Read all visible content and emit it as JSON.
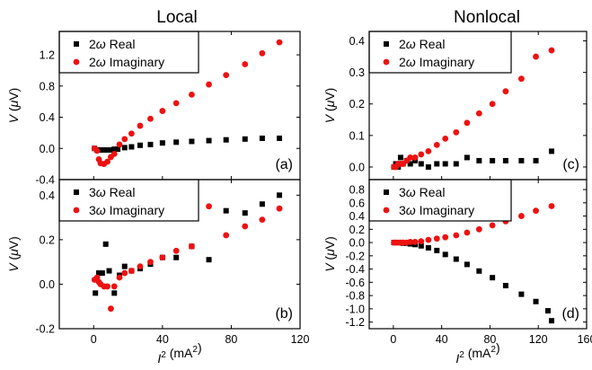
{
  "figure": {
    "columns": [
      {
        "title": "Local"
      },
      {
        "title": "Nonlocal"
      }
    ]
  },
  "chart_data": [
    {
      "id": "a",
      "type": "scatter",
      "panel_label": "(a)",
      "column": 0,
      "row": 0,
      "ylabel": "V (μV)",
      "xlabel": "",
      "xlim": [
        -20,
        120
      ],
      "ylim": [
        -0.4,
        1.5
      ],
      "yticks": [
        -0.4,
        0.0,
        0.4,
        0.8,
        1.2
      ],
      "ytick_labels": [
        "-0.4",
        "0.0",
        "0.4",
        "0.8",
        "1.2"
      ],
      "xticks": [
        0,
        40,
        80,
        120
      ],
      "xtick_labels": [],
      "legend_position": "top-left",
      "series": [
        {
          "name": "2ω Real",
          "marker": "square",
          "color": "#000000",
          "points": [
            [
              0.5,
              0
            ],
            [
              2,
              -0.02
            ],
            [
              4,
              -0.02
            ],
            [
              6,
              -0.02
            ],
            [
              8,
              -0.02
            ],
            [
              10,
              -0.02
            ],
            [
              12,
              -0.01
            ],
            [
              14,
              -0.01
            ],
            [
              18,
              0.01
            ],
            [
              22,
              0.02
            ],
            [
              27,
              0.04
            ],
            [
              33,
              0.05
            ],
            [
              40,
              0.07
            ],
            [
              48,
              0.08
            ],
            [
              57,
              0.09
            ],
            [
              67,
              0.1
            ],
            [
              77,
              0.11
            ],
            [
              88,
              0.12
            ],
            [
              98,
              0.13
            ],
            [
              108,
              0.13
            ]
          ]
        },
        {
          "name": "2ω Imaginary",
          "marker": "circle",
          "color": "#ee1111",
          "points": [
            [
              0.5,
              0
            ],
            [
              2,
              -0.03
            ],
            [
              3,
              -0.14
            ],
            [
              4,
              -0.19
            ],
            [
              6,
              -0.2
            ],
            [
              8,
              -0.17
            ],
            [
              10,
              -0.11
            ],
            [
              12,
              -0.07
            ],
            [
              15,
              0.05
            ],
            [
              18,
              0.12
            ],
            [
              22,
              0.19
            ],
            [
              27,
              0.29
            ],
            [
              33,
              0.38
            ],
            [
              40,
              0.48
            ],
            [
              48,
              0.58
            ],
            [
              57,
              0.69
            ],
            [
              67,
              0.82
            ],
            [
              77,
              0.94
            ],
            [
              88,
              1.08
            ],
            [
              98,
              1.22
            ],
            [
              108,
              1.36
            ]
          ]
        }
      ]
    },
    {
      "id": "b",
      "type": "scatter",
      "panel_label": "(b)",
      "column": 0,
      "row": 1,
      "ylabel": "V (μV)",
      "xlabel": "I² (mA²)",
      "xlim": [
        -20,
        120
      ],
      "ylim": [
        -0.2,
        0.47
      ],
      "yticks": [
        -0.2,
        0.0,
        0.2,
        0.4
      ],
      "ytick_labels": [
        "-0.2",
        "0.0",
        "0.2",
        "0.4"
      ],
      "xticks": [
        0,
        40,
        80,
        120
      ],
      "xtick_labels": [
        "0",
        "40",
        "80",
        "120"
      ],
      "legend_position": "top-left",
      "series": [
        {
          "name": "3ω Real",
          "marker": "square",
          "color": "#000000",
          "points": [
            [
              1,
              -0.04
            ],
            [
              3,
              0.05
            ],
            [
              5,
              0.05
            ],
            [
              7,
              0.18
            ],
            [
              9,
              0.06
            ],
            [
              12,
              -0.04
            ],
            [
              15,
              0.04
            ],
            [
              18,
              0.08
            ],
            [
              22,
              0.06
            ],
            [
              27,
              0.07
            ],
            [
              33,
              0.09
            ],
            [
              40,
              0.12
            ],
            [
              48,
              0.12
            ],
            [
              57,
              0.17
            ],
            [
              67,
              0.11
            ],
            [
              77,
              0.33
            ],
            [
              88,
              0.32
            ],
            [
              98,
              0.36
            ],
            [
              108,
              0.4
            ]
          ]
        },
        {
          "name": "3ω Imaginary",
          "marker": "circle",
          "color": "#ee1111",
          "points": [
            [
              0.5,
              0.02
            ],
            [
              2,
              0.03
            ],
            [
              3,
              0.01
            ],
            [
              4,
              0
            ],
            [
              6,
              -0.01
            ],
            [
              8,
              -0.01
            ],
            [
              10,
              -0.11
            ],
            [
              12,
              -0.01
            ],
            [
              15,
              0.03
            ],
            [
              18,
              0.05
            ],
            [
              22,
              0.06
            ],
            [
              27,
              0.08
            ],
            [
              33,
              0.1
            ],
            [
              40,
              0.12
            ],
            [
              48,
              0.15
            ],
            [
              57,
              0.17
            ],
            [
              67,
              0.35
            ],
            [
              77,
              0.22
            ],
            [
              88,
              0.26
            ],
            [
              98,
              0.29
            ],
            [
              108,
              0.34
            ]
          ]
        }
      ]
    },
    {
      "id": "c",
      "type": "scatter",
      "panel_label": "(c)",
      "column": 1,
      "row": 0,
      "ylabel": "V (μV)",
      "xlabel": "",
      "xlim": [
        -20,
        160
      ],
      "ylim": [
        -0.04,
        0.43
      ],
      "yticks": [
        0.0,
        0.1,
        0.2,
        0.3,
        0.4
      ],
      "ytick_labels": [
        "0.0",
        "0.1",
        "0.2",
        "0.3",
        "0.4"
      ],
      "xticks": [
        0,
        40,
        80,
        120,
        160
      ],
      "xtick_labels": [],
      "legend_position": "top-left",
      "series": [
        {
          "name": "2ω Real",
          "marker": "square",
          "color": "#000000",
          "points": [
            [
              0.5,
              0
            ],
            [
              2,
              0.01
            ],
            [
              4,
              0
            ],
            [
              6,
              0.03
            ],
            [
              8,
              0.01
            ],
            [
              11,
              0.02
            ],
            [
              14,
              0.01
            ],
            [
              18,
              0.02
            ],
            [
              23,
              0.01
            ],
            [
              29,
              0
            ],
            [
              36,
              0.01
            ],
            [
              43,
              0.01
            ],
            [
              52,
              0.01
            ],
            [
              61,
              0.03
            ],
            [
              71,
              0.02
            ],
            [
              82,
              0.02
            ],
            [
              93,
              0.02
            ],
            [
              106,
              0.02
            ],
            [
              118,
              0.02
            ],
            [
              131,
              0.05
            ]
          ]
        },
        {
          "name": "2ω Imaginary",
          "marker": "circle",
          "color": "#ee1111",
          "points": [
            [
              0.5,
              0
            ],
            [
              2,
              0
            ],
            [
              4,
              0.01
            ],
            [
              6,
              0.01
            ],
            [
              8,
              0.01
            ],
            [
              11,
              0.02
            ],
            [
              14,
              0.03
            ],
            [
              18,
              0.03
            ],
            [
              23,
              0.04
            ],
            [
              29,
              0.05
            ],
            [
              36,
              0.07
            ],
            [
              43,
              0.09
            ],
            [
              52,
              0.11
            ],
            [
              61,
              0.14
            ],
            [
              71,
              0.17
            ],
            [
              82,
              0.2
            ],
            [
              93,
              0.24
            ],
            [
              106,
              0.28
            ],
            [
              118,
              0.35
            ],
            [
              131,
              0.37
            ]
          ]
        }
      ]
    },
    {
      "id": "d",
      "type": "scatter",
      "panel_label": "(d)",
      "column": 1,
      "row": 1,
      "ylabel": "V (μV)",
      "xlabel": "I² (mA²)",
      "xlim": [
        -20,
        160
      ],
      "ylim": [
        -1.3,
        0.95
      ],
      "yticks": [
        -1.2,
        -1.0,
        -0.8,
        -0.6,
        -0.4,
        -0.2,
        0.0,
        0.2,
        0.4,
        0.6,
        0.8
      ],
      "ytick_labels": [
        "-1.2",
        "-1.0",
        "-0.8",
        "-0.6",
        "-0.4",
        "-0.2",
        "0.0",
        "0.2",
        "0.4",
        "0.6",
        "0.8"
      ],
      "xticks": [
        0,
        40,
        80,
        120,
        160
      ],
      "xtick_labels": [
        "0",
        "40",
        "80",
        "120",
        "160"
      ],
      "legend_position": "top-left",
      "series": [
        {
          "name": "3ω Real",
          "marker": "square",
          "color": "#000000",
          "points": [
            [
              0.5,
              0
            ],
            [
              2,
              0
            ],
            [
              4,
              0
            ],
            [
              6,
              0
            ],
            [
              8,
              -0.01
            ],
            [
              11,
              -0.01
            ],
            [
              14,
              -0.02
            ],
            [
              18,
              -0.03
            ],
            [
              23,
              -0.05
            ],
            [
              29,
              -0.08
            ],
            [
              36,
              -0.12
            ],
            [
              43,
              -0.18
            ],
            [
              52,
              -0.25
            ],
            [
              61,
              -0.33
            ],
            [
              71,
              -0.43
            ],
            [
              82,
              -0.53
            ],
            [
              93,
              -0.65
            ],
            [
              106,
              -0.78
            ],
            [
              118,
              -0.89
            ],
            [
              128,
              -1.03
            ],
            [
              131,
              -1.18
            ]
          ]
        },
        {
          "name": "3ω Imaginary",
          "marker": "circle",
          "color": "#ee1111",
          "points": [
            [
              0.5,
              0
            ],
            [
              2,
              0
            ],
            [
              4,
              0
            ],
            [
              6,
              0
            ],
            [
              8,
              0
            ],
            [
              11,
              0
            ],
            [
              14,
              0.01
            ],
            [
              18,
              0.01
            ],
            [
              23,
              0.02
            ],
            [
              29,
              0.04
            ],
            [
              36,
              0.06
            ],
            [
              43,
              0.08
            ],
            [
              52,
              0.11
            ],
            [
              61,
              0.15
            ],
            [
              71,
              0.2
            ],
            [
              82,
              0.26
            ],
            [
              93,
              0.32
            ],
            [
              106,
              0.4
            ],
            [
              118,
              0.48
            ],
            [
              131,
              0.55
            ]
          ]
        }
      ]
    }
  ]
}
